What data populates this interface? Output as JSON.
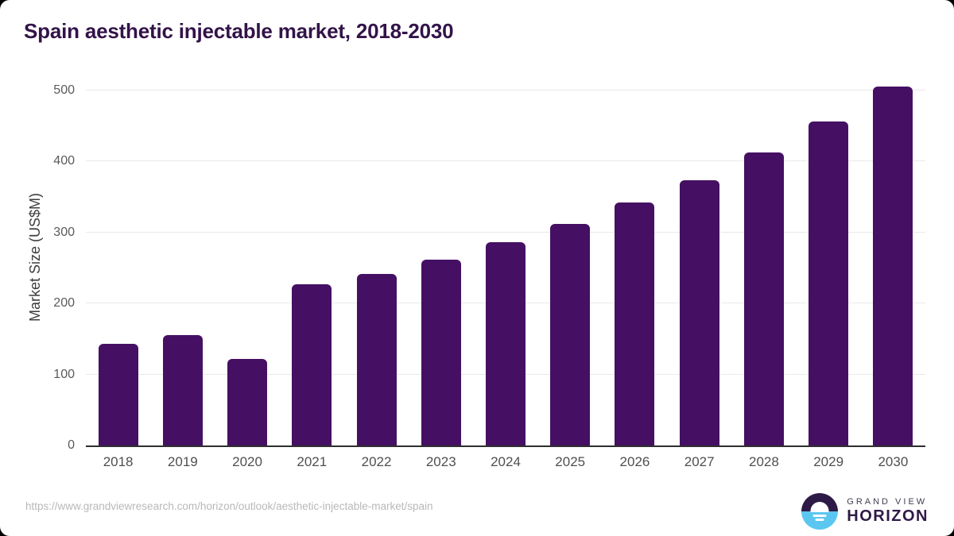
{
  "title": "Spain aesthetic injectable market, 2018-2030",
  "chart_data": {
    "type": "bar",
    "categories": [
      "2018",
      "2019",
      "2020",
      "2021",
      "2022",
      "2023",
      "2024",
      "2025",
      "2026",
      "2027",
      "2028",
      "2029",
      "2030"
    ],
    "values": [
      143,
      155,
      122,
      227,
      242,
      262,
      286,
      312,
      342,
      374,
      413,
      456,
      506
    ],
    "title": "Spain aesthetic injectable market, 2018-2030",
    "xlabel": "",
    "ylabel": "Market Size (US$M)",
    "ylim": [
      0,
      500
    ],
    "yticks": [
      0,
      100,
      200,
      300,
      400,
      500
    ],
    "grid": true,
    "legend": false,
    "bar_color": "#451063"
  },
  "colors": {
    "bar": "#451063",
    "title": "#331349",
    "logo_purple": "#2e1a47",
    "logo_blue": "#5bc7f1",
    "axis_line": "#2e2e2e",
    "gridline": "#e9e9e9"
  },
  "footer": {
    "source_url": "https://www.grandviewresearch.com/horizon/outlook/aesthetic-injectable-market/spain",
    "logo": {
      "line1": "GRAND VIEW",
      "line2": "HORIZON"
    }
  }
}
